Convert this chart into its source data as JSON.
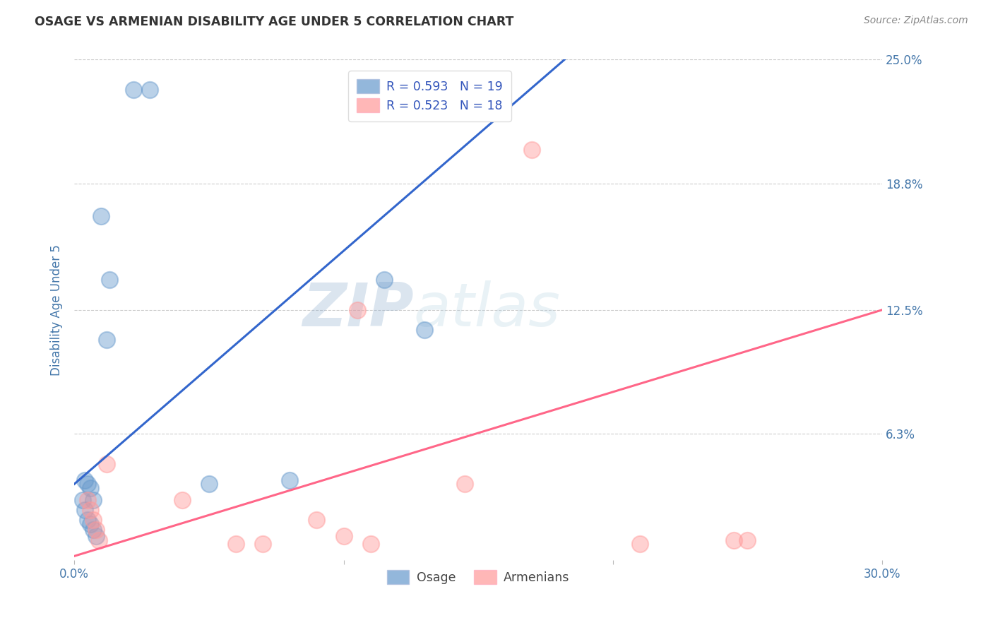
{
  "title": "OSAGE VS ARMENIAN DISABILITY AGE UNDER 5 CORRELATION CHART",
  "source": "Source: ZipAtlas.com",
  "ylabel": "Disability Age Under 5",
  "xlim": [
    0.0,
    0.3
  ],
  "ylim": [
    0.0,
    0.25
  ],
  "ytick_labels": [
    "25.0%",
    "18.8%",
    "12.5%",
    "6.3%"
  ],
  "ytick_positions": [
    0.25,
    0.188,
    0.125,
    0.063
  ],
  "watermark_zip": "ZIP",
  "watermark_atlas": "atlas",
  "osage_scatter_x": [
    0.022,
    0.028,
    0.01,
    0.004,
    0.005,
    0.006,
    0.007,
    0.003,
    0.004,
    0.005,
    0.006,
    0.007,
    0.008,
    0.012,
    0.013,
    0.05,
    0.08,
    0.115,
    0.13
  ],
  "osage_scatter_y": [
    0.235,
    0.235,
    0.172,
    0.04,
    0.038,
    0.036,
    0.03,
    0.03,
    0.025,
    0.02,
    0.018,
    0.015,
    0.012,
    0.11,
    0.14,
    0.038,
    0.04,
    0.14,
    0.115
  ],
  "armenian_scatter_x": [
    0.005,
    0.006,
    0.007,
    0.008,
    0.009,
    0.012,
    0.04,
    0.06,
    0.07,
    0.09,
    0.1,
    0.105,
    0.11,
    0.145,
    0.17,
    0.21,
    0.245,
    0.25
  ],
  "armenian_scatter_y": [
    0.03,
    0.025,
    0.02,
    0.015,
    0.01,
    0.048,
    0.03,
    0.008,
    0.008,
    0.02,
    0.012,
    0.125,
    0.008,
    0.038,
    0.205,
    0.008,
    0.01,
    0.01
  ],
  "osage_line_x0": 0.0,
  "osage_line_x1": 0.182,
  "osage_line_y0": 0.038,
  "osage_line_y1": 0.25,
  "armenian_line_x0": 0.0,
  "armenian_line_x1": 0.3,
  "armenian_line_y0": 0.002,
  "armenian_line_y1": 0.125,
  "osage_color": "#6699CC",
  "armenian_color": "#FF9999",
  "osage_line_color": "#3366CC",
  "armenian_line_color": "#FF6688",
  "osage_R": "0.593",
  "osage_N": "19",
  "armenian_R": "0.523",
  "armenian_N": "18",
  "legend_label_osage": "Osage",
  "legend_label_armenian": "Armenians",
  "title_color": "#333333",
  "axis_label_color": "#4477AA",
  "tick_label_color": "#4477AA",
  "grid_color": "#CCCCCC",
  "background_color": "#FFFFFF"
}
